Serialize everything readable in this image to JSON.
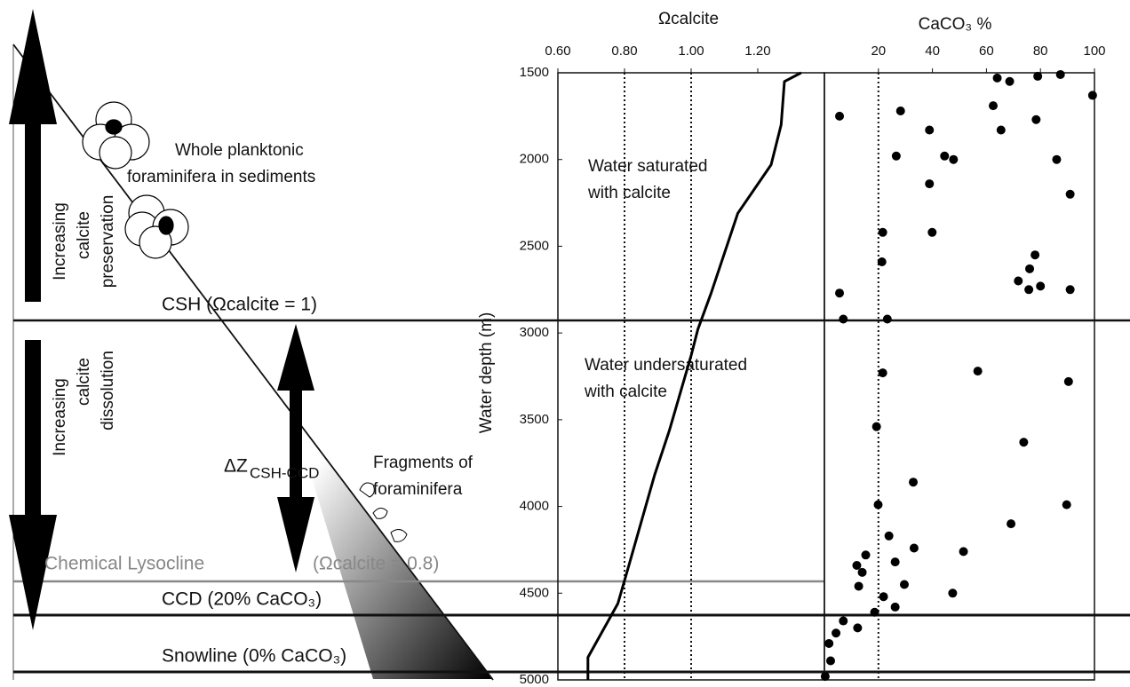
{
  "diagram": {
    "preservation": [
      "Increasing",
      "calcite",
      "preservation"
    ],
    "dissolution": [
      "Increasing",
      "calcite",
      "dissolution"
    ],
    "whole_forams": [
      "Whole planktonic",
      "foraminifera in sediments"
    ],
    "fragments": [
      "Fragments of",
      "foraminifera"
    ],
    "delta_z": "ΔZ",
    "delta_z_sub": "CSH-CCD",
    "csh": "CSH (Ωcalcite = 1)",
    "lysocline": "Chemical Lysocline",
    "lysocline_value": "(Ωcalcite = 0.8)",
    "ccd": "CCD (20% CaCO₃)",
    "snowline": "Snowline (0% CaCO₃)"
  },
  "chart_data": [
    {
      "type": "line",
      "title": "Ωcalcite",
      "y_label": "Water depth (m)",
      "color": "#000",
      "x": [
        1.33,
        1.28,
        1.27,
        1.24,
        1.14,
        1.06,
        1.02,
        1.0,
        0.935,
        0.89,
        0.81,
        0.78,
        0.69,
        0.69
      ],
      "y": [
        1500,
        1550,
        1800,
        2030,
        2310,
        2770,
        2980,
        3130,
        3560,
        3820,
        4360,
        4560,
        4870,
        5000
      ],
      "xlim": [
        0.6,
        1.4
      ],
      "xticks": [
        {
          "value": 0.6,
          "label": "0.60"
        },
        {
          "value": 0.8,
          "label": "0.80"
        },
        {
          "value": 1.0,
          "label": "1.00"
        },
        {
          "value": 1.2,
          "label": "1.20"
        }
      ],
      "ylim": [
        1500,
        5000
      ],
      "y_inverted": true,
      "yticks": [
        1500,
        2000,
        2500,
        3000,
        3500,
        4000,
        4500,
        5000
      ],
      "reference_lines": [
        0.8,
        1.0
      ],
      "annotations": [
        [
          "Water saturated",
          "with calcite"
        ],
        [
          "Water undersaturated",
          "with calcite"
        ]
      ]
    },
    {
      "type": "scatter",
      "title": "CaCO₃ %",
      "color": "#000",
      "x": [
        64,
        68.6,
        79,
        87.4,
        99.3,
        62.5,
        5.6,
        28.2,
        78.4,
        38.9,
        65.4,
        26.6,
        44.5,
        47.8,
        86,
        38.9,
        91,
        21.6,
        39.9,
        78,
        76,
        71.8,
        80,
        75.7,
        91,
        5.6,
        21.3,
        7,
        23.3,
        56.8,
        90.4,
        21.6,
        19.3,
        73.8,
        32.9,
        89.7,
        19.9,
        69.1,
        23.9,
        33.2,
        51.5,
        15.3,
        26.2,
        12,
        14,
        12.7,
        29.6,
        21.9,
        47.5,
        26.2,
        18.6,
        7,
        12.3,
        4.3,
        1.7,
        2.3,
        0.3
      ],
      "y": [
        1530,
        1550,
        1520,
        1510,
        1630,
        1690,
        1750,
        1720,
        1770,
        1830,
        1830,
        1980,
        1980,
        2000,
        2000,
        2140,
        2200,
        2420,
        2420,
        2550,
        2630,
        2700,
        2730,
        2750,
        2750,
        2770,
        2590,
        2920,
        2920,
        3220,
        3280,
        3230,
        3540,
        3630,
        3860,
        3990,
        3990,
        4100,
        4170,
        4240,
        4260,
        4280,
        4320,
        4340,
        4380,
        4460,
        4450,
        4520,
        4500,
        4580,
        4610,
        4660,
        4700,
        4730,
        4790,
        4890,
        4980
      ],
      "xlim": [
        0,
        100
      ],
      "xticks": [
        20,
        40,
        60,
        80,
        100
      ],
      "ylim": [
        1500,
        5000
      ],
      "y_inverted": true,
      "reference_lines": [
        20
      ]
    }
  ]
}
